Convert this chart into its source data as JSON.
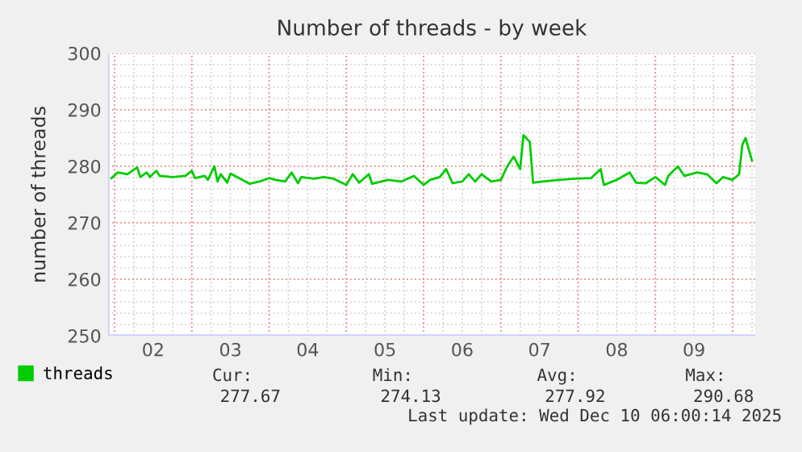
{
  "chart_data": {
    "type": "line",
    "title": "Number of threads - by week",
    "ylabel": "number of threads",
    "x": [
      "2025-12-01T23:00",
      "2025-12-02T01:00",
      "2025-12-02T04:00",
      "2025-12-02T07:00",
      "2025-12-02T08:00",
      "2025-12-02T10:00",
      "2025-12-02T11:00",
      "2025-12-02T13:00",
      "2025-12-02T14:00",
      "2025-12-02T18:00",
      "2025-12-02T22:00",
      "2025-12-03T00:00",
      "2025-12-03T01:00",
      "2025-12-03T04:00",
      "2025-12-03T05:00",
      "2025-12-03T07:00",
      "2025-12-03T08:00",
      "2025-12-03T09:00",
      "2025-12-03T11:00",
      "2025-12-03T12:00",
      "2025-12-03T14:00",
      "2025-12-03T18:00",
      "2025-12-03T21:00",
      "2025-12-04T00:00",
      "2025-12-04T02:00",
      "2025-12-04T05:00",
      "2025-12-04T07:00",
      "2025-12-04T09:00",
      "2025-12-04T10:00",
      "2025-12-04T14:00",
      "2025-12-04T17:00",
      "2025-12-04T20:00",
      "2025-12-05T00:00",
      "2025-12-05T02:00",
      "2025-12-05T04:00",
      "2025-12-05T07:00",
      "2025-12-05T08:00",
      "2025-12-05T13:00",
      "2025-12-05T17:00",
      "2025-12-05T21:00",
      "2025-12-06T00:00",
      "2025-12-06T02:00",
      "2025-12-06T05:00",
      "2025-12-06T07:00",
      "2025-12-06T09:00",
      "2025-12-06T12:00",
      "2025-12-06T14:00",
      "2025-12-06T16:00",
      "2025-12-06T18:00",
      "2025-12-06T21:00",
      "2025-12-07T00:00",
      "2025-12-07T02:00",
      "2025-12-07T04:00",
      "2025-12-07T06:00",
      "2025-12-07T07:00",
      "2025-12-07T09:00",
      "2025-12-07T10:00",
      "2025-12-07T13:00",
      "2025-12-07T18:00",
      "2025-12-07T23:00",
      "2025-12-08T04:00",
      "2025-12-08T07:00",
      "2025-12-08T08:00",
      "2025-12-08T12:00",
      "2025-12-08T16:00",
      "2025-12-08T18:00",
      "2025-12-08T21:00",
      "2025-12-09T00:00",
      "2025-12-09T03:00",
      "2025-12-09T04:00",
      "2025-12-09T07:00",
      "2025-12-09T09:00",
      "2025-12-09T13:00",
      "2025-12-09T16:00",
      "2025-12-09T19:00",
      "2025-12-09T21:00",
      "2025-12-10T00:00",
      "2025-12-10T02:00",
      "2025-12-10T03:00",
      "2025-12-10T04:00",
      "2025-12-10T05:00",
      "2025-12-10T06:00"
    ],
    "series": [
      {
        "name": "threads",
        "color": "#00cc00",
        "values": [
          277.9,
          278.9,
          278.6,
          279.8,
          278.1,
          278.9,
          278.1,
          279.2,
          278.3,
          278.1,
          278.3,
          279.2,
          277.9,
          278.3,
          277.6,
          280.0,
          277.3,
          278.6,
          277.1,
          278.7,
          278.1,
          276.9,
          277.3,
          277.9,
          277.6,
          277.3,
          278.9,
          277.0,
          278.1,
          277.8,
          278.1,
          277.8,
          276.7,
          278.6,
          277.1,
          278.6,
          276.9,
          277.6,
          277.3,
          278.3,
          276.7,
          277.6,
          278.1,
          279.5,
          277.0,
          277.3,
          278.6,
          277.3,
          278.6,
          277.3,
          277.6,
          280.0,
          281.7,
          279.5,
          285.5,
          284.3,
          277.1,
          277.3,
          277.6,
          277.8,
          277.9,
          279.5,
          276.7,
          277.6,
          278.9,
          277.1,
          277.0,
          278.1,
          276.7,
          278.3,
          280.0,
          278.3,
          278.9,
          278.6,
          277.0,
          278.1,
          277.6,
          278.6,
          283.8,
          285.0,
          283.0,
          281.0
        ]
      }
    ],
    "xlim": [
      "2025-12-01T22:00",
      "2025-12-10T07:00"
    ],
    "xticks": [
      {
        "value": "2025-12-02T00:00",
        "label": null
      },
      {
        "value": "2025-12-02T12:00",
        "label": "02"
      },
      {
        "value": "2025-12-03T00:00",
        "label": null
      },
      {
        "value": "2025-12-03T12:00",
        "label": "03"
      },
      {
        "value": "2025-12-04T00:00",
        "label": null
      },
      {
        "value": "2025-12-04T12:00",
        "label": "04"
      },
      {
        "value": "2025-12-05T00:00",
        "label": null
      },
      {
        "value": "2025-12-05T12:00",
        "label": "05"
      },
      {
        "value": "2025-12-06T00:00",
        "label": null
      },
      {
        "value": "2025-12-06T12:00",
        "label": "06"
      },
      {
        "value": "2025-12-07T00:00",
        "label": null
      },
      {
        "value": "2025-12-07T12:00",
        "label": "07"
      },
      {
        "value": "2025-12-08T00:00",
        "label": null
      },
      {
        "value": "2025-12-08T12:00",
        "label": "08"
      },
      {
        "value": "2025-12-09T00:00",
        "label": null
      },
      {
        "value": "2025-12-09T12:00",
        "label": "09"
      },
      {
        "value": "2025-12-10T00:00",
        "label": null
      }
    ],
    "ylim": [
      250,
      300
    ],
    "yticks": [
      250,
      260,
      270,
      280,
      290,
      300
    ],
    "grid": true,
    "legend": "bottom left",
    "marker": "none",
    "line_style": "solid",
    "annotations": [
      "Cur:",
      "Min:",
      "Avg:",
      "Max:",
      "277.67",
      "274.13",
      "277.92",
      "290.68",
      "Last update: Wed Dec 10 06:00:14 2025"
    ]
  }
}
